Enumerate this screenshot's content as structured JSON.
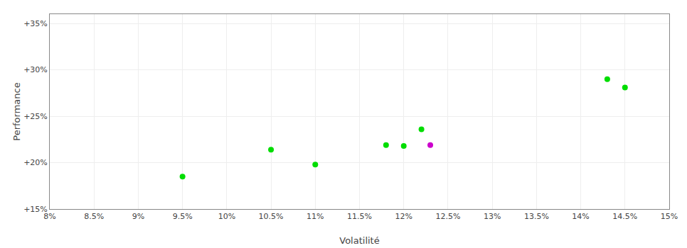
{
  "chart_data": {
    "type": "scatter",
    "xlabel": "Volatilité",
    "ylabel": "Performance",
    "x": [
      0.095,
      0.105,
      0.11,
      0.118,
      0.12,
      0.122,
      0.123,
      0.143,
      0.145
    ],
    "values": [
      0.185,
      0.214,
      0.198,
      0.219,
      0.218,
      0.236,
      0.219,
      0.29,
      0.281
    ],
    "colors": [
      "#00dd00",
      "#00dd00",
      "#00dd00",
      "#00dd00",
      "#00dd00",
      "#00dd00",
      "#cc00cc",
      "#00dd00",
      "#00dd00"
    ],
    "xlim": [
      0.08,
      0.15
    ],
    "ylim": [
      0.15,
      0.36
    ],
    "xticks": [
      {
        "value": 0.08,
        "label": "8%"
      },
      {
        "value": 0.085,
        "label": "8.5%"
      },
      {
        "value": 0.09,
        "label": "9%"
      },
      {
        "value": 0.095,
        "label": "9.5%"
      },
      {
        "value": 0.1,
        "label": "10%"
      },
      {
        "value": 0.105,
        "label": "10.5%"
      },
      {
        "value": 0.11,
        "label": "11%"
      },
      {
        "value": 0.115,
        "label": "11.5%"
      },
      {
        "value": 0.12,
        "label": "12%"
      },
      {
        "value": 0.125,
        "label": "12.5%"
      },
      {
        "value": 0.13,
        "label": "13%"
      },
      {
        "value": 0.135,
        "label": "13.5%"
      },
      {
        "value": 0.14,
        "label": "14%"
      },
      {
        "value": 0.145,
        "label": "14.5%"
      },
      {
        "value": 0.15,
        "label": "15%"
      }
    ],
    "yticks": [
      {
        "value": 0.15,
        "label": "+15%"
      },
      {
        "value": 0.2,
        "label": "+20%"
      },
      {
        "value": 0.25,
        "label": "+25%"
      },
      {
        "value": 0.3,
        "label": "+30%"
      },
      {
        "value": 0.35,
        "label": "+35%"
      }
    ],
    "grid": true
  }
}
